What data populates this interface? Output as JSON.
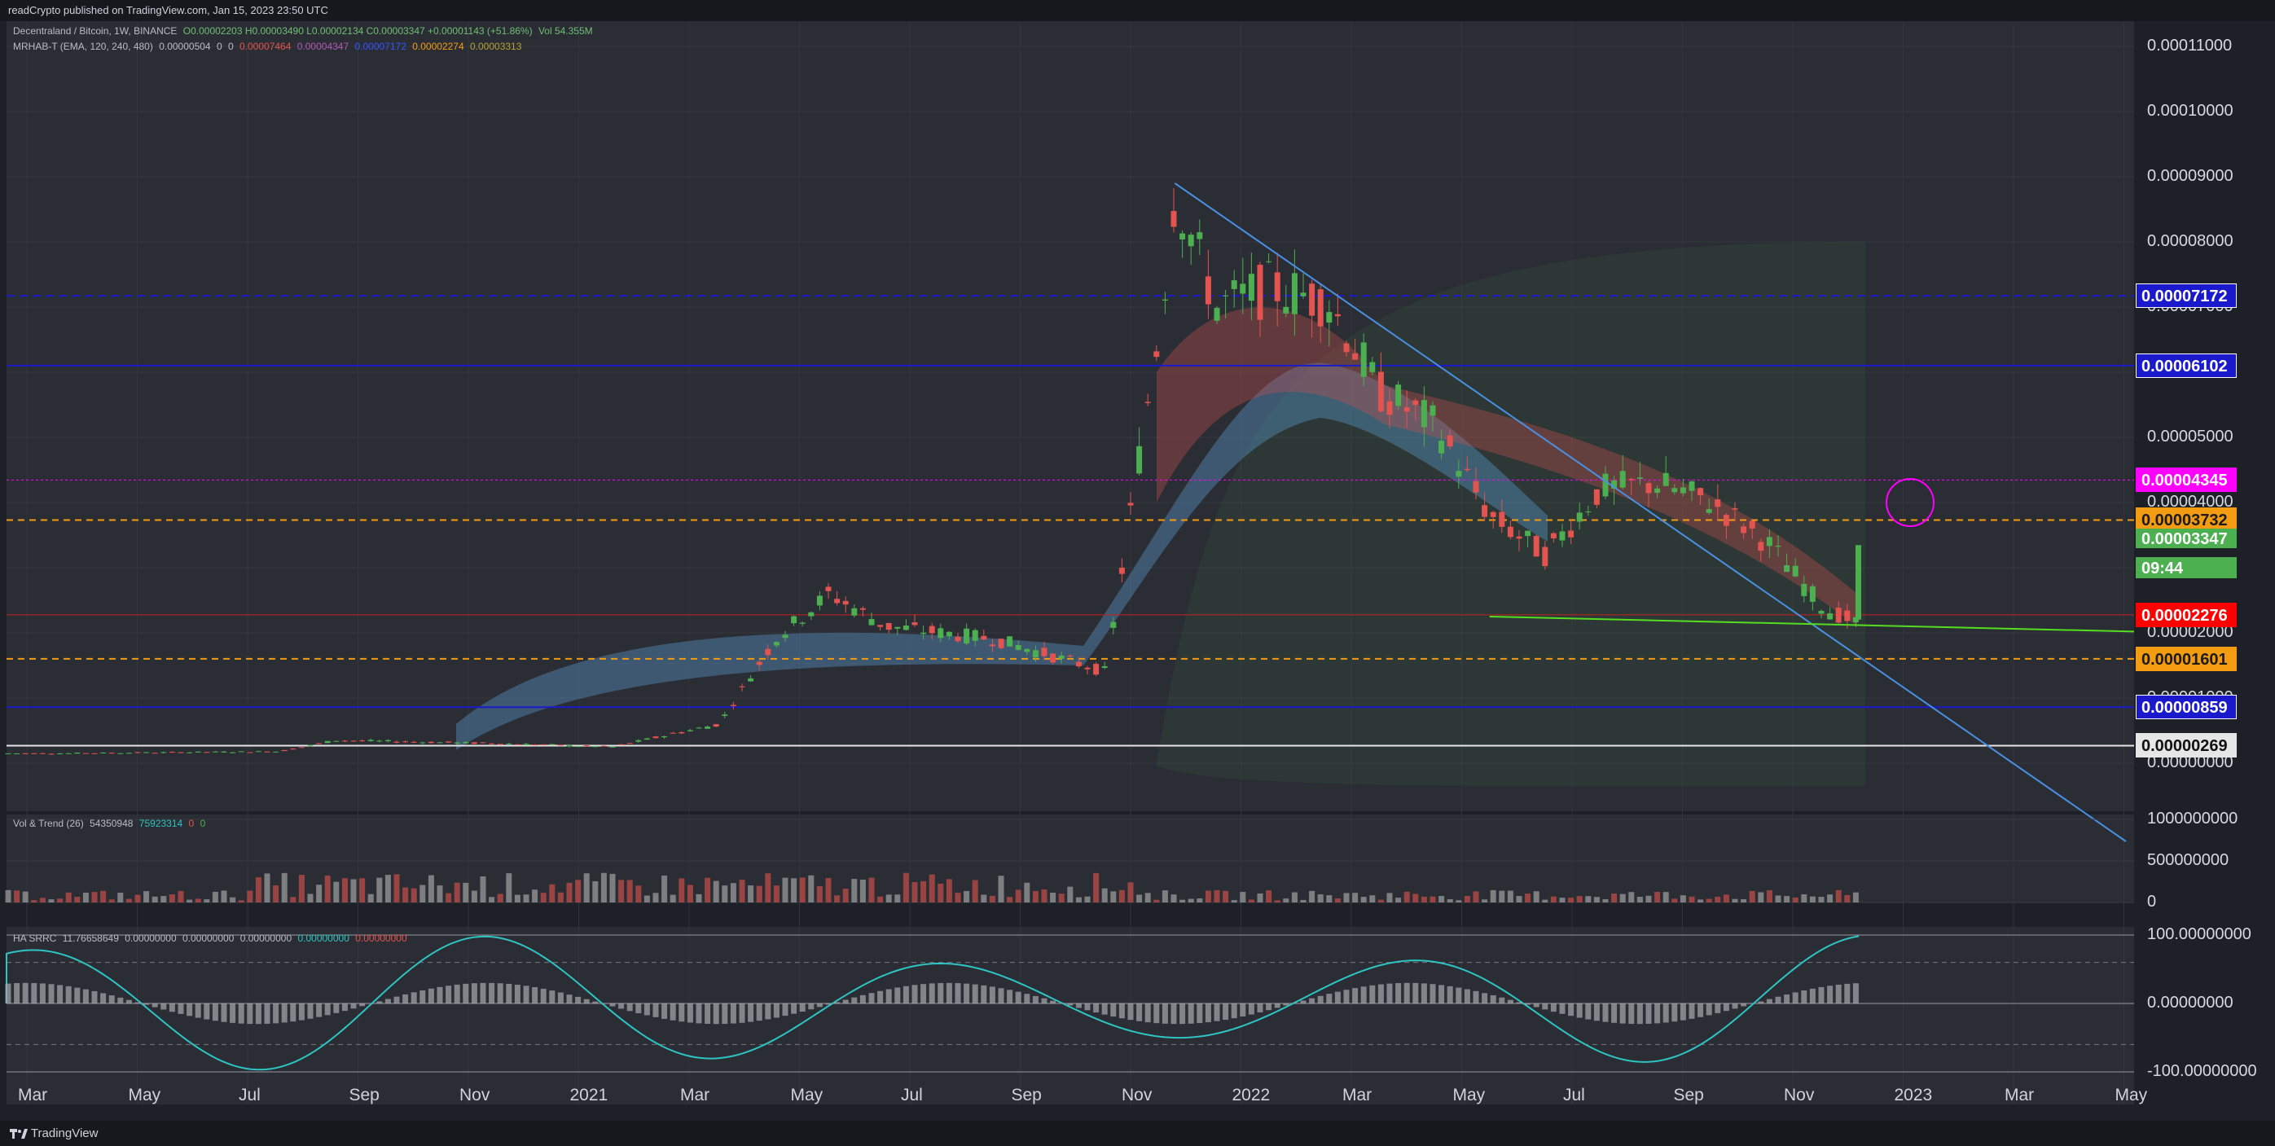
{
  "header": {
    "published_text": "readCrypto published on TradingView.com, Jan 15, 2023 23:50 UTC"
  },
  "footer": {
    "brand": "TradingView"
  },
  "legend": {
    "symbol_line": "Decentraland / Bitcoin, 1W, BINANCE",
    "ohlc": "O0.00002203 H0.00003490 L0.00002134 C0.00003347 +0.00001143 (+51.86%)",
    "vol": "Vol 54.355M",
    "indicator": "MRHAB-T (EMA, 120, 240, 480)",
    "indicator_values": [
      "0.00000504",
      "0",
      "0",
      "0.00007464",
      "0.00004347",
      "0.00007172",
      "0.00002274",
      "0.00003313"
    ],
    "vol_trend": "Vol & Trend (26)",
    "vol_trend_values": [
      "54350948",
      "75923314",
      "0",
      "0"
    ],
    "ha_srrc": "HA SRRC",
    "ha_srrc_values": [
      "11.76658649",
      "0.00000000",
      "0.00000000",
      "0.00000000",
      "0.00000000",
      "0.00000000"
    ]
  },
  "price_boxes": [
    {
      "label": "0.00007172",
      "bg": "#1a1acc",
      "fg": "#ffffff",
      "border": "#ffffff"
    },
    {
      "label": "0.00006102",
      "bg": "#1a1acc",
      "fg": "#ffffff",
      "border": "#ffffff"
    },
    {
      "label": "0.00004345",
      "bg": "#ff00ff",
      "fg": "#ffffff",
      "border": "#ff00ff"
    },
    {
      "label": "0.00003732",
      "bg": "#f39c12",
      "fg": "#1b1b1b",
      "border": "#f39c12"
    },
    {
      "label": "0.00003347",
      "bg": "#4caf50",
      "fg": "#ffffff",
      "border": "#4caf50"
    },
    {
      "label": "09:44",
      "bg": "#4caf50",
      "fg": "#ffffff",
      "border": "#4caf50"
    },
    {
      "label": "0.00002276",
      "bg": "#ff0000",
      "fg": "#ffffff",
      "border": "#ff0000"
    },
    {
      "label": "0.00001601",
      "bg": "#f39c12",
      "fg": "#1b1b1b",
      "border": "#f39c12"
    },
    {
      "label": "0.00000859",
      "bg": "#1a1acc",
      "fg": "#ffffff",
      "border": "#ffffff"
    },
    {
      "label": "0.00000269",
      "bg": "#e6e6e6",
      "fg": "#111111",
      "border": "#e6e6e6"
    }
  ],
  "colors": {
    "background": "#2a2b31",
    "up": "#4caf50",
    "down": "#e3534f",
    "trendline": "#4a90e2",
    "support_line": "#55dd22",
    "blue_level": "#1a1acc",
    "orange_level": "#f39c12",
    "magenta_level": "#ff00ff"
  },
  "chart_data": [
    {
      "type": "candlestick",
      "title": "Decentraland / Bitcoin, 1W, BINANCE",
      "x_ticks": [
        "Mar",
        "May",
        "Jul",
        "Sep",
        "Nov",
        "2021",
        "Mar",
        "May",
        "Jul",
        "Sep",
        "Nov",
        "2022",
        "Mar",
        "May",
        "Jul",
        "Sep",
        "Nov",
        "2023",
        "Mar",
        "May"
      ],
      "y_ticks": [
        "0.00011000",
        "0.00010000",
        "0.00009000",
        "0.00008000",
        "0.00007000",
        "0.00006000",
        "0.00005000",
        "0.00004000",
        "0.00003000",
        "0.00002000",
        "0.00001000",
        "0.00000000"
      ],
      "ylim": [
        0,
        0.00011
      ],
      "levels": [
        7.172e-05,
        6.102e-05,
        4.345e-05,
        3.732e-05,
        2.276e-05,
        1.601e-05,
        8.59e-06,
        2.69e-06
      ],
      "last_close": 3.347e-05,
      "price_path": [
        {
          "date": "2020-03",
          "value": 1.5e-06
        },
        {
          "date": "2020-07",
          "value": 1.8e-06
        },
        {
          "date": "2020-08",
          "value": 3.5e-06
        },
        {
          "date": "2020-11",
          "value": 3e-06
        },
        {
          "date": "2021-01",
          "value": 2.5e-06
        },
        {
          "date": "2021-03",
          "value": 6e-06
        },
        {
          "date": "2021-04",
          "value": 1.9e-05
        },
        {
          "date": "2021-05",
          "value": 2.6e-05
        },
        {
          "date": "2021-06",
          "value": 2.1e-05
        },
        {
          "date": "2021-08",
          "value": 1.9e-05
        },
        {
          "date": "2021-10",
          "value": 1.4e-05
        },
        {
          "date": "2021-11",
          "value": 7e-05
        },
        {
          "date": "2021-11-22",
          "value": 8.8e-05
        },
        {
          "date": "2021-12",
          "value": 7e-05
        },
        {
          "date": "2022-01",
          "value": 7.3e-05
        },
        {
          "date": "2022-02",
          "value": 7.1e-05
        },
        {
          "date": "2022-03",
          "value": 5.7e-05
        },
        {
          "date": "2022-04",
          "value": 5.2e-05
        },
        {
          "date": "2022-05",
          "value": 3.8e-05
        },
        {
          "date": "2022-06",
          "value": 3.2e-05
        },
        {
          "date": "2022-07",
          "value": 4.2e-05
        },
        {
          "date": "2022-08",
          "value": 4.3e-05
        },
        {
          "date": "2022-09",
          "value": 4e-05
        },
        {
          "date": "2022-10",
          "value": 3.4e-05
        },
        {
          "date": "2022-11",
          "value": 2.4e-05
        },
        {
          "date": "2022-12",
          "value": 2e-05
        },
        {
          "date": "2023-01",
          "value": 3.4e-05
        }
      ]
    },
    {
      "type": "bar",
      "title": "Vol & Trend (26)",
      "y_ticks": [
        "1000000000",
        "500000000",
        "0"
      ],
      "ylim": [
        0,
        1000000000
      ]
    },
    {
      "type": "line",
      "title": "HA SRRC",
      "y_ticks": [
        "100.00000000",
        "0.00000000",
        "-100.00000000"
      ],
      "ylim": [
        -100,
        100
      ]
    }
  ]
}
